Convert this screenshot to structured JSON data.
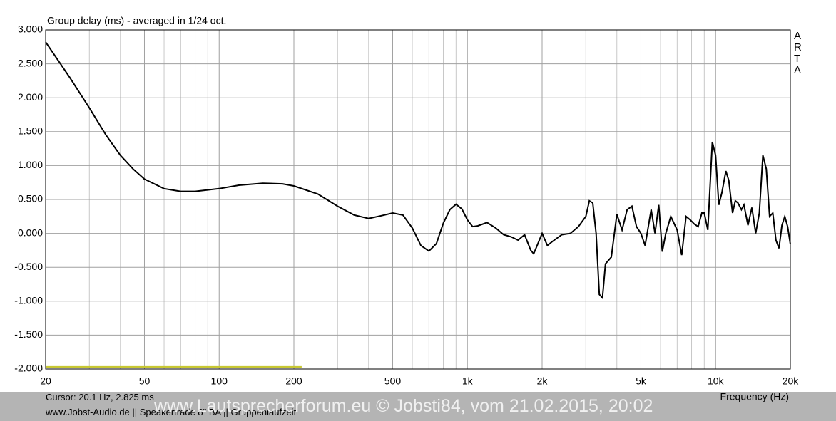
{
  "chart_data": {
    "type": "line",
    "title": "Group delay (ms) - averaged in 1/24 oct.",
    "brand": "ARTA",
    "x_label": "Frequency (Hz)",
    "cursor": "Cursor: 20.1 Hz, 2.825 ms",
    "footer": "www.Jobst-Audio.de  ||  Speakertrade 8\" BA  ||  Gruppenlaufzeit",
    "watermark": "www.Lautsprecherforum.eu © Jobsti84, vom 21.02.2015, 20:02",
    "x_scale": "log",
    "grid": true,
    "xlim": [
      20,
      20000
    ],
    "ylim": [
      -2,
      3
    ],
    "xticks": [
      20,
      50,
      100,
      200,
      500,
      {
        "value": 1000,
        "label": "1k"
      },
      {
        "value": 2000,
        "label": "2k"
      },
      {
        "value": 5000,
        "label": "5k"
      },
      {
        "value": 10000,
        "label": "10k"
      },
      {
        "value": 20000,
        "label": "20k"
      }
    ],
    "xgrid_minor": [
      30,
      40,
      60,
      70,
      80,
      90,
      300,
      400,
      600,
      700,
      800,
      900,
      3000,
      4000,
      6000,
      7000,
      8000,
      9000
    ],
    "yticks": [
      {
        "value": -2,
        "label": "-2.000"
      },
      {
        "value": -1.5,
        "label": "-1.500"
      },
      {
        "value": -1,
        "label": "-1.000"
      },
      {
        "value": -0.5,
        "label": "-0.500"
      },
      {
        "value": 0,
        "label": "0.000"
      },
      {
        "value": 0.5,
        "label": "0.500"
      },
      {
        "value": 1,
        "label": "1.000"
      },
      {
        "value": 1.5,
        "label": "1.500"
      },
      {
        "value": 2,
        "label": "2.000"
      },
      {
        "value": 2.5,
        "label": "2.500"
      },
      {
        "value": 3,
        "label": "3.000"
      }
    ],
    "series": [
      {
        "color": "#000000",
        "x": [
          20,
          25,
          30,
          35,
          40,
          45,
          50,
          60,
          70,
          80,
          100,
          120,
          150,
          180,
          200,
          250,
          300,
          350,
          400,
          450,
          500,
          550,
          600,
          650,
          700,
          750,
          800,
          850,
          900,
          950,
          1000,
          1050,
          1100,
          1200,
          1300,
          1400,
          1500,
          1600,
          1700,
          1800,
          1850,
          1900,
          2000,
          2100,
          2200,
          2400,
          2600,
          2800,
          3000,
          3100,
          3200,
          3300,
          3400,
          3500,
          3600,
          3800,
          4000,
          4200,
          4400,
          4600,
          4800,
          5000,
          5200,
          5500,
          5700,
          5900,
          6100,
          6300,
          6600,
          7000,
          7300,
          7600,
          7900,
          8200,
          8500,
          8800,
          9000,
          9300,
          9700,
          10000,
          10300,
          10600,
          11000,
          11300,
          11700,
          12000,
          12300,
          12700,
          13000,
          13500,
          14000,
          14500,
          15000,
          15500,
          16000,
          16500,
          17000,
          17500,
          18000,
          18500,
          19000,
          19500,
          20000
        ],
        "values": [
          2.82,
          2.3,
          1.85,
          1.45,
          1.15,
          0.95,
          0.8,
          0.66,
          0.62,
          0.62,
          0.66,
          0.71,
          0.74,
          0.73,
          0.7,
          0.58,
          0.4,
          0.27,
          0.22,
          0.26,
          0.3,
          0.27,
          0.08,
          -0.18,
          -0.26,
          -0.15,
          0.15,
          0.35,
          0.43,
          0.36,
          0.2,
          0.1,
          0.11,
          0.16,
          0.08,
          -0.02,
          -0.05,
          -0.1,
          -0.02,
          -0.25,
          -0.3,
          -0.2,
          0,
          -0.18,
          -0.12,
          -0.02,
          0,
          0.1,
          0.25,
          0.48,
          0.45,
          0,
          -0.9,
          -0.95,
          -0.45,
          -0.35,
          0.28,
          0.05,
          0.35,
          0.4,
          0.1,
          0,
          -0.18,
          0.35,
          0,
          0.42,
          -0.27,
          0,
          0.25,
          0.05,
          -0.32,
          0.25,
          0.2,
          0.14,
          0.1,
          0.3,
          0.3,
          0.05,
          1.35,
          1.15,
          0.42,
          0.6,
          0.92,
          0.78,
          0.3,
          0.48,
          0.45,
          0.35,
          0.42,
          0.12,
          0.38,
          0,
          0.3,
          1.15,
          0.95,
          0.25,
          0.3,
          -0.1,
          -0.22,
          0.12,
          0.25,
          0.1,
          -0.16
        ]
      },
      {
        "color": "#c8c832",
        "x": [
          20,
          215
        ],
        "values": [
          -1.97,
          -1.97
        ]
      }
    ]
  }
}
